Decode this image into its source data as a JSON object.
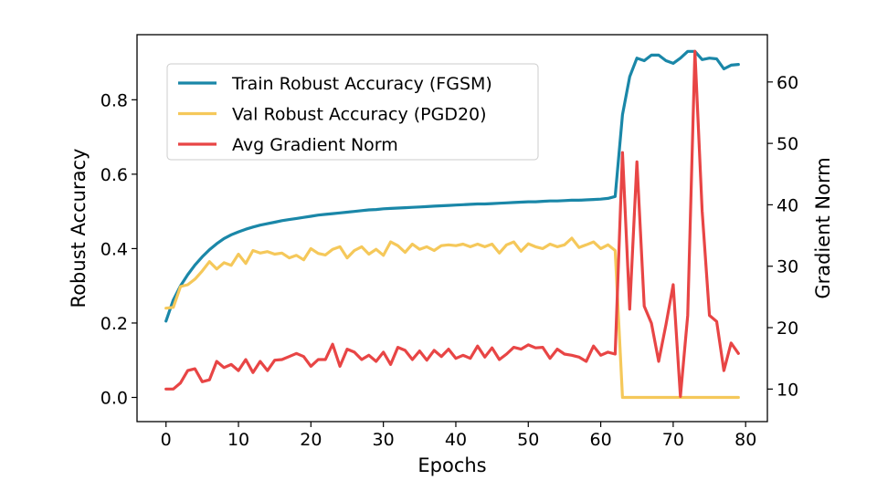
{
  "chart_data": {
    "type": "line",
    "title": "",
    "xlabel": "Epochs",
    "ylabel": "Robust Accuracy",
    "y2label": "Gradient Norm",
    "xlim": [
      -4,
      83
    ],
    "ylim": [
      -0.065,
      0.975
    ],
    "y2lim": [
      4.7,
      67.7
    ],
    "xticks": [
      0,
      10,
      20,
      30,
      40,
      50,
      60,
      70,
      80
    ],
    "yticks": [
      "0.0",
      "0.2",
      "0.4",
      "0.6",
      "0.8"
    ],
    "y2ticks": [
      10,
      20,
      30,
      40,
      50,
      60
    ],
    "grid": false,
    "legend_position": "upper-left",
    "x": [
      0,
      1,
      2,
      3,
      4,
      5,
      6,
      7,
      8,
      9,
      10,
      11,
      12,
      13,
      14,
      15,
      16,
      17,
      18,
      19,
      20,
      21,
      22,
      23,
      24,
      25,
      26,
      27,
      28,
      29,
      30,
      31,
      32,
      33,
      34,
      35,
      36,
      37,
      38,
      39,
      40,
      41,
      42,
      43,
      44,
      45,
      46,
      47,
      48,
      49,
      50,
      51,
      52,
      53,
      54,
      55,
      56,
      57,
      58,
      59,
      60,
      61,
      62,
      63,
      64,
      65,
      66,
      67,
      68,
      69,
      70,
      71,
      72,
      73,
      74,
      75,
      76,
      77,
      78,
      79
    ],
    "series": [
      {
        "name": "Train Robust Accuracy (FGSM)",
        "axis": "left",
        "color": "#1a87a8",
        "values": [
          0.205,
          0.262,
          0.3,
          0.33,
          0.356,
          0.378,
          0.397,
          0.413,
          0.427,
          0.437,
          0.445,
          0.452,
          0.458,
          0.463,
          0.467,
          0.471,
          0.475,
          0.478,
          0.481,
          0.484,
          0.487,
          0.49,
          0.492,
          0.494,
          0.496,
          0.498,
          0.5,
          0.502,
          0.504,
          0.505,
          0.507,
          0.508,
          0.509,
          0.51,
          0.511,
          0.512,
          0.513,
          0.514,
          0.515,
          0.516,
          0.517,
          0.518,
          0.519,
          0.52,
          0.52,
          0.521,
          0.522,
          0.523,
          0.524,
          0.525,
          0.526,
          0.526,
          0.527,
          0.528,
          0.528,
          0.529,
          0.53,
          0.53,
          0.531,
          0.532,
          0.533,
          0.535,
          0.54,
          0.76,
          0.862,
          0.912,
          0.905,
          0.92,
          0.92,
          0.905,
          0.898,
          0.912,
          0.93,
          0.93,
          0.908,
          0.912,
          0.91,
          0.883,
          0.893,
          0.895
        ]
      },
      {
        "name": "Val Robust Accuracy (PGD20)",
        "axis": "left",
        "color": "#f5c85a",
        "values": [
          0.24,
          0.242,
          0.298,
          0.303,
          0.318,
          0.34,
          0.365,
          0.345,
          0.362,
          0.355,
          0.385,
          0.36,
          0.395,
          0.388,
          0.392,
          0.385,
          0.388,
          0.375,
          0.382,
          0.37,
          0.4,
          0.387,
          0.383,
          0.398,
          0.405,
          0.375,
          0.395,
          0.405,
          0.385,
          0.398,
          0.382,
          0.418,
          0.408,
          0.39,
          0.412,
          0.398,
          0.405,
          0.395,
          0.408,
          0.41,
          0.408,
          0.412,
          0.405,
          0.412,
          0.405,
          0.412,
          0.388,
          0.41,
          0.418,
          0.393,
          0.413,
          0.405,
          0.4,
          0.412,
          0.405,
          0.41,
          0.428,
          0.403,
          0.41,
          0.418,
          0.4,
          0.41,
          0.395,
          0.0,
          0.0,
          0.0,
          0.0,
          0.0,
          0.0,
          0.0,
          0.0,
          0.0,
          0.0,
          0.0,
          0.0,
          0.0,
          0.0,
          0.0,
          0.0,
          0.0
        ]
      },
      {
        "name": "Avg Gradient Norm",
        "axis": "right",
        "color": "#e84545",
        "values": [
          10.0,
          10.0,
          11.0,
          13.0,
          13.3,
          11.2,
          11.5,
          14.5,
          13.5,
          14.0,
          13.0,
          14.8,
          12.7,
          14.5,
          13.0,
          14.7,
          14.8,
          15.3,
          15.8,
          15.3,
          13.7,
          14.8,
          14.8,
          17.3,
          13.7,
          16.5,
          16.0,
          14.8,
          15.5,
          14.5,
          16.0,
          14.0,
          16.8,
          16.3,
          14.8,
          16.2,
          14.7,
          16.3,
          15.3,
          16.5,
          15.0,
          15.5,
          15.0,
          17.0,
          15.2,
          16.7,
          14.8,
          15.7,
          16.8,
          16.5,
          17.2,
          16.7,
          16.8,
          15.0,
          16.5,
          15.7,
          15.5,
          15.2,
          14.5,
          17.0,
          15.5,
          16.0,
          15.7,
          48.5,
          23.0,
          47.0,
          23.5,
          20.7,
          14.5,
          20.5,
          27.0,
          8.8,
          22.0,
          65.0,
          39.0,
          22.0,
          21.0,
          13.0,
          17.5,
          15.8
        ]
      }
    ]
  }
}
